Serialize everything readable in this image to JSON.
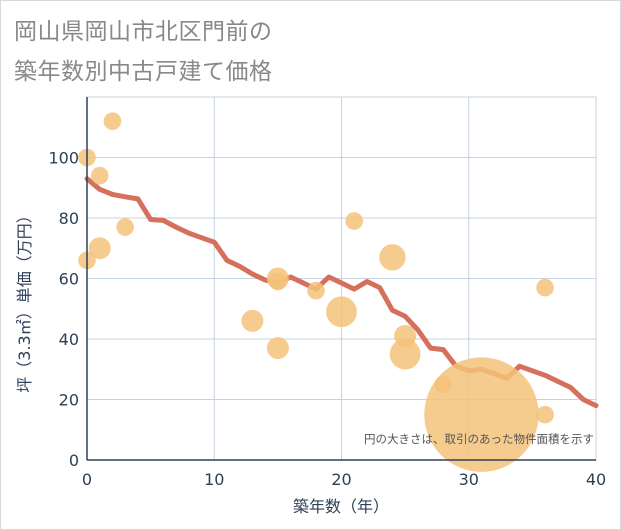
{
  "title": {
    "line1": "岡山県岡山市北区門前の",
    "line2": "築年数別中古戸建て価格"
  },
  "chart_data": {
    "type": "scatter+line",
    "title": "岡山県岡山市北区門前の築年数別中古戸建て価格",
    "xlabel": "築年数（年）",
    "ylabel": "坪（3.3㎡）単価（万円）",
    "xlim": [
      0,
      40
    ],
    "ylim": [
      0,
      120
    ],
    "x_ticks": [
      0,
      10,
      20,
      30,
      40
    ],
    "y_ticks": [
      0,
      20,
      40,
      60,
      80,
      100
    ],
    "grid": true,
    "annotation": "円の大きさは、取引のあった物件面積を示す",
    "colors": {
      "line": "#d4705c",
      "bubble": "#f5c27a",
      "grid": "#c5d3e0",
      "axis": "#2e4057"
    },
    "scatter": [
      {
        "x": 0,
        "y": 100,
        "size": 4
      },
      {
        "x": 0,
        "y": 66,
        "size": 4
      },
      {
        "x": 1,
        "y": 94,
        "size": 4
      },
      {
        "x": 1,
        "y": 70,
        "size": 5
      },
      {
        "x": 2,
        "y": 112,
        "size": 4
      },
      {
        "x": 3,
        "y": 77,
        "size": 4
      },
      {
        "x": 13,
        "y": 46,
        "size": 5
      },
      {
        "x": 15,
        "y": 60,
        "size": 5
      },
      {
        "x": 15,
        "y": 59,
        "size": 4
      },
      {
        "x": 15,
        "y": 37,
        "size": 5
      },
      {
        "x": 18,
        "y": 56,
        "size": 4
      },
      {
        "x": 20,
        "y": 49,
        "size": 7
      },
      {
        "x": 21,
        "y": 79,
        "size": 4
      },
      {
        "x": 24,
        "y": 67,
        "size": 6
      },
      {
        "x": 25,
        "y": 41,
        "size": 5
      },
      {
        "x": 25,
        "y": 35,
        "size": 7
      },
      {
        "x": 28,
        "y": 25,
        "size": 4
      },
      {
        "x": 31,
        "y": 15,
        "size": 26
      },
      {
        "x": 36,
        "y": 57,
        "size": 4
      },
      {
        "x": 36,
        "y": 15,
        "size": 4
      }
    ],
    "line": {
      "x": [
        0,
        1,
        2,
        3,
        4,
        5,
        6,
        7,
        8,
        9,
        10,
        11,
        12,
        13,
        14,
        15,
        16,
        17,
        18,
        19,
        20,
        21,
        22,
        23,
        24,
        25,
        26,
        27,
        28,
        29,
        30,
        31,
        32,
        33,
        34,
        35,
        36,
        37,
        38,
        39,
        40
      ],
      "y": [
        93,
        89.5,
        87.8,
        87,
        86.3,
        79.5,
        79.2,
        77,
        75,
        73.5,
        72,
        66,
        64,
        61.5,
        59.5,
        58.5,
        60.5,
        58.5,
        56.5,
        60.5,
        58.5,
        56.5,
        59,
        57,
        49.5,
        47.5,
        43,
        37,
        36.5,
        31,
        29.5,
        30,
        28.5,
        27,
        31,
        29.5,
        28,
        26,
        24,
        20,
        18
      ]
    }
  }
}
